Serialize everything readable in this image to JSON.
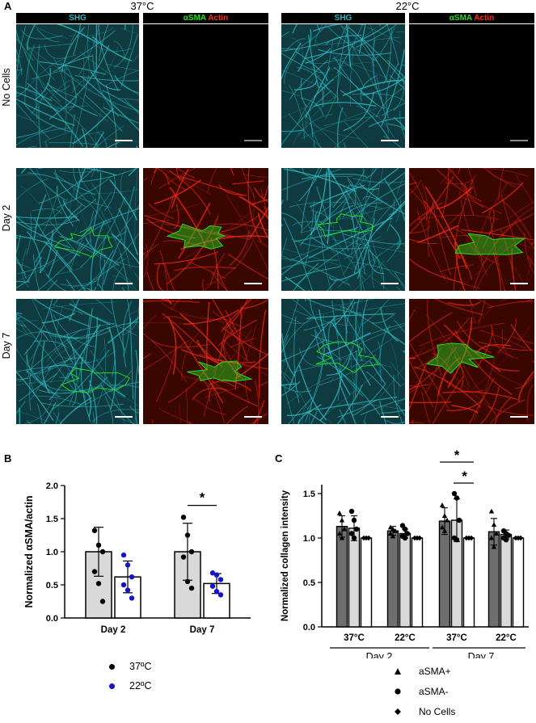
{
  "panel_a": {
    "letter": "A",
    "conditions": [
      "37°C",
      "22°C"
    ],
    "channel_headers": {
      "shg": "SHG",
      "asma": "αSMA",
      "actin": "Actin"
    },
    "rows": [
      "No Cells",
      "Day 2",
      "Day 7"
    ],
    "colors": {
      "shg": "#2fb8c0",
      "asma": "#22dd22",
      "actin": "#ff2a1a",
      "background": "#000000"
    }
  },
  "panel_b": {
    "letter": "B",
    "legend": [
      {
        "label": "37ºC",
        "color": "#000000"
      },
      {
        "label": "22ºC",
        "color": "#1414c8"
      }
    ]
  },
  "panel_c": {
    "letter": "C",
    "group_labels": [
      "Day 2",
      "Day 7"
    ],
    "legend": [
      {
        "label": "aSMA+",
        "marker": "triangle"
      },
      {
        "label": "aSMA-",
        "marker": "circle"
      },
      {
        "label": "No Cells",
        "marker": "diamond"
      }
    ]
  },
  "chart_data": [
    {
      "type": "bar",
      "ylabel": "Normalized αSMA/actin",
      "ylim": [
        0.0,
        2.0
      ],
      "yticks": [
        "0.0",
        "0.5",
        "1.0",
        "1.5",
        "2.0"
      ],
      "categories": [
        "Day 2",
        "Day 7"
      ],
      "series": [
        {
          "name": "37ºC",
          "fill": "#d9d9d9",
          "point_color": "#000000",
          "values": [
            1.0,
            1.0
          ],
          "errors": [
            0.37,
            0.43
          ],
          "points": [
            [
              1.32,
              1.1,
              1.0,
              0.7,
              0.52,
              0.25
            ],
            [
              1.52,
              1.25,
              1.0,
              0.92,
              0.55,
              0.45
            ]
          ]
        },
        {
          "name": "22ºC",
          "fill": "#ffffff",
          "point_color": "#1414c8",
          "values": [
            0.62,
            0.52
          ],
          "errors": [
            0.24,
            0.15
          ],
          "points": [
            [
              0.95,
              0.8,
              0.62,
              0.5,
              0.42,
              0.3
            ],
            [
              0.68,
              0.65,
              0.58,
              0.48,
              0.4,
              0.35
            ]
          ]
        }
      ],
      "annotations": [
        {
          "text": "*",
          "between": [
            "Day 7 · 37ºC",
            "Day 7 · 22ºC"
          ]
        }
      ]
    },
    {
      "type": "bar",
      "ylabel": "Normalized collagen intensity",
      "ylim": [
        0.0,
        1.6
      ],
      "yticks": [
        "0.0",
        "0.5",
        "1.0",
        "1.5"
      ],
      "categories": [
        "37°C",
        "22°C",
        "37°C",
        "22°C"
      ],
      "groups": [
        "Day 2",
        "Day 2",
        "Day 7",
        "Day 7"
      ],
      "series": [
        {
          "name": "aSMA+",
          "fill": "#6e6e6e",
          "marker": "triangle",
          "values": [
            1.13,
            1.08,
            1.19,
            1.07
          ],
          "errors": [
            0.12,
            0.05,
            0.15,
            0.15
          ],
          "points": [
            [
              1.28,
              1.2,
              1.1,
              1.05,
              1.0
            ],
            [
              1.12,
              1.1,
              1.08,
              1.05,
              1.02
            ],
            [
              1.37,
              1.25,
              1.2,
              1.12,
              1.08
            ],
            [
              1.3,
              1.15,
              1.05,
              1.0,
              0.9
            ]
          ]
        },
        {
          "name": "aSMA-",
          "fill": "#d9d9d9",
          "marker": "circle",
          "values": [
            1.11,
            1.05,
            1.2,
            1.04
          ],
          "errors": [
            0.14,
            0.05,
            0.24,
            0.05
          ],
          "points": [
            [
              1.3,
              1.2,
              1.1,
              1.05,
              1.0
            ],
            [
              1.14,
              1.1,
              1.05,
              1.02,
              1.0
            ],
            [
              1.5,
              1.45,
              1.2,
              1.0,
              0.98
            ],
            [
              1.08,
              1.05,
              1.03,
              1.0,
              0.98
            ]
          ]
        },
        {
          "name": "No Cells",
          "fill": "#ffffff",
          "marker": "diamond",
          "values": [
            1.0,
            1.0,
            1.0,
            1.0
          ],
          "errors": [
            0.0,
            0.0,
            0.0,
            0.0
          ],
          "points": [
            [
              1.0,
              1.0,
              1.0
            ],
            [
              1.0,
              1.0,
              1.0
            ],
            [
              1.0,
              1.0,
              1.0
            ],
            [
              1.0,
              1.0,
              1.0
            ]
          ]
        }
      ],
      "annotations": [
        {
          "text": "*",
          "between": [
            "Day 7 37°C · aSMA+",
            "Day 7 37°C · No Cells"
          ]
        },
        {
          "text": "*",
          "between": [
            "Day 7 37°C · aSMA-",
            "Day 7 37°C · No Cells"
          ]
        }
      ]
    }
  ]
}
